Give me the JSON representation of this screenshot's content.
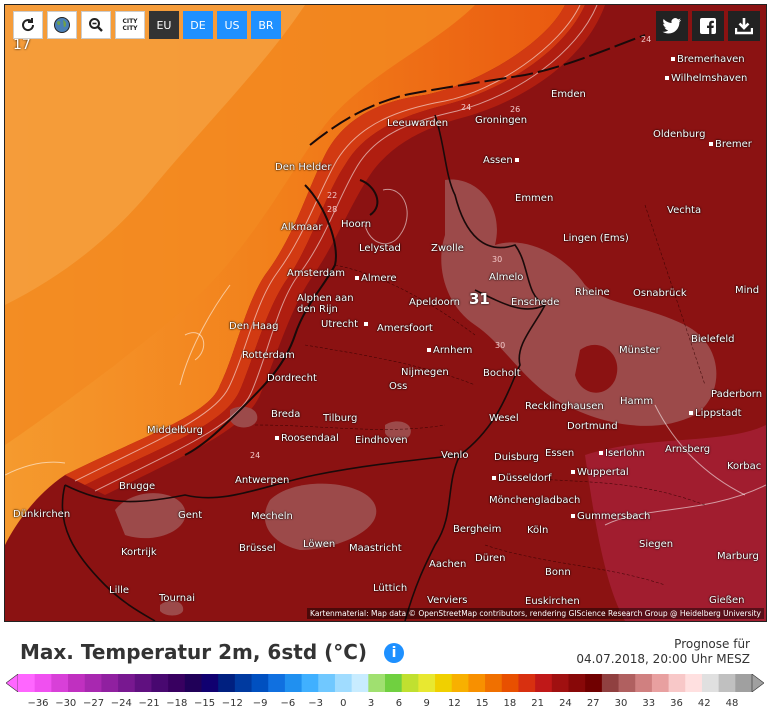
{
  "toolbar": {
    "buttons": [
      {
        "name": "refresh-icon",
        "glyph": "⟳"
      },
      {
        "name": "globe-icon",
        "glyph": "🌍"
      },
      {
        "name": "zoom-out-icon",
        "glyph": "🔍"
      }
    ],
    "city_toggle_label": "CITY\nCITY",
    "regions": [
      "EU",
      "DE",
      "US",
      "BR"
    ]
  },
  "social": {
    "twitter": "twitter-icon",
    "facebook": "facebook-icon",
    "download": "download-icon"
  },
  "map": {
    "corner_value": "17",
    "highlight_value": "31",
    "isoline_labels": [
      "24",
      "26",
      "22",
      "28",
      "24",
      "30",
      "30",
      "24"
    ],
    "cities": [
      "Bremerhaven",
      "Wilhelmshaven",
      "Emden",
      "Leeuwarden",
      "Groningen",
      "Oldenburg",
      "Bremer",
      "Den Helder",
      "Assen",
      "Emmen",
      "Vechta",
      "Hoorn",
      "Alkmaar",
      "Lelystad",
      "Zwolle",
      "Lingen (Ems)",
      "Amsterdam",
      "Almere",
      "Almelo",
      "Rheine",
      "Osnabrück",
      "Mind",
      "Alphen aan den Rijn",
      "Utrecht",
      "Apeldoorn",
      "Enschede",
      "Amersfoort",
      "Den Haag",
      "Bielefeld",
      "Rotterdam",
      "Arnhem",
      "Münster",
      "Nijmegen",
      "Bocholt",
      "Dordrecht",
      "Oss",
      "Paderborn",
      "Hamm",
      "Recklinghausen",
      "Lippstadt",
      "Breda",
      "Tilburg",
      "Wesel",
      "Dortmund",
      "Middelburg",
      "Roosendaal",
      "Eindhoven",
      "Essen",
      "Iserlohn",
      "Arnsberg",
      "Venlo",
      "Duisburg",
      "Korbac",
      "Brugge",
      "Antwerpen",
      "Düsseldorf",
      "Wuppertal",
      "Gent",
      "Mönchengladbach",
      "Dünkirchen",
      "Mecheln",
      "Gummersbach",
      "Bergheim",
      "Köln",
      "Kortrijk",
      "Löwen",
      "Brüssel",
      "Maastricht",
      "Düren",
      "Siegen",
      "Marburg",
      "Aachen",
      "Bonn",
      "Lille",
      "Lüttich",
      "Tournai",
      "Verviers",
      "Euskirchen",
      "Gießen"
    ],
    "attribution": "Kartenmaterial: Map data © OpenStreetMap contributors, rendering GIScience Research Group @ Heidelberg University"
  },
  "legend": {
    "title": "Max. Temperatur 2m, 6std (°C)",
    "info_label": "i",
    "forecast_label": "Prognose für",
    "forecast_time": "04.07.2018, 20:00 Uhr MESZ",
    "ticks": [
      "-36",
      "-30",
      "-27",
      "-24",
      "-21",
      "-18",
      "-15",
      "-12",
      "-9",
      "-6",
      "-3",
      "0",
      "3",
      "6",
      "9",
      "12",
      "15",
      "18",
      "21",
      "24",
      "27",
      "30",
      "33",
      "36",
      "42",
      "48"
    ],
    "colors": [
      "#ff66ff",
      "#f050f0",
      "#d840d8",
      "#c030c0",
      "#a828b0",
      "#9020a0",
      "#781890",
      "#601080",
      "#480870",
      "#380060",
      "#200058",
      "#100070",
      "#002080",
      "#003aa0",
      "#0050c0",
      "#1070e0",
      "#2090f0",
      "#40b0ff",
      "#70c8ff",
      "#a0dcff",
      "#c8ecff",
      "#a0e070",
      "#70d040",
      "#c0e030",
      "#e8e830",
      "#f0d000",
      "#f8b000",
      "#f89000",
      "#f07000",
      "#e85000",
      "#d83010",
      "#c01818",
      "#a01010",
      "#880808",
      "#700000",
      "#904040",
      "#b06060",
      "#d08080",
      "#e8a0a0",
      "#f8c8c8",
      "#ffe0e0",
      "#e0e0e0",
      "#c0c0c0",
      "#a0a0a0"
    ]
  }
}
